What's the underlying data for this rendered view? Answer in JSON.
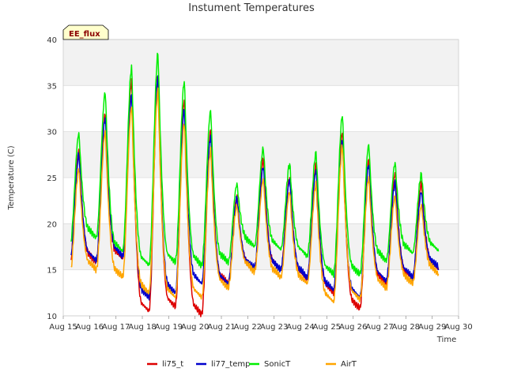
{
  "chart_data": {
    "type": "line",
    "title": "Instument Temperatures",
    "xlabel": "Time",
    "ylabel": "Temperature (C)",
    "ylim": [
      10,
      40
    ],
    "xlim": [
      0,
      15
    ],
    "y_ticks": [
      10,
      15,
      20,
      25,
      30,
      35,
      40
    ],
    "x_tick_labels": [
      "Aug 15",
      "Aug 16",
      "Aug 17",
      "Aug 18",
      "Aug 19",
      "Aug 20",
      "Aug 21",
      "Aug 22",
      "Aug 23",
      "Aug 24",
      "Aug 25",
      "Aug 26",
      "Aug 27",
      "Aug 28",
      "Aug 29",
      "Aug 30"
    ],
    "grid": true,
    "background_bands": true,
    "legend_position": "bottom",
    "annotation": "EE_flux",
    "series": [
      {
        "name": "li75_t",
        "color": "#dd0000",
        "daily": [
          [
            15.5,
            28.0
          ],
          [
            15.8,
            32.0
          ],
          [
            16.2,
            35.5
          ],
          [
            10.5,
            36.0
          ],
          [
            11.0,
            33.5
          ],
          [
            10.2,
            30.2
          ],
          [
            13.5,
            23.0
          ],
          [
            15.0,
            27.0
          ],
          [
            15.0,
            25.0
          ],
          [
            14.0,
            26.5
          ],
          [
            12.5,
            30.0
          ],
          [
            10.8,
            27.0
          ],
          [
            13.5,
            25.5
          ],
          [
            14.0,
            24.5
          ],
          [
            15.0,
            24.5
          ]
        ],
        "end": 15.0
      },
      {
        "name": "li77_temp",
        "color": "#0000cc",
        "daily": [
          [
            15.8,
            27.5
          ],
          [
            16.0,
            31.5
          ],
          [
            16.5,
            34.0
          ],
          [
            12.0,
            36.0
          ],
          [
            12.5,
            32.5
          ],
          [
            13.5,
            29.5
          ],
          [
            13.5,
            22.8
          ],
          [
            15.2,
            26.2
          ],
          [
            15.0,
            24.8
          ],
          [
            14.2,
            25.8
          ],
          [
            12.8,
            29.0
          ],
          [
            12.0,
            26.5
          ],
          [
            13.8,
            24.5
          ],
          [
            14.2,
            23.5
          ],
          [
            15.2,
            23.5
          ]
        ],
        "end": 15.2
      },
      {
        "name": "SonicT",
        "color": "#00ee00",
        "daily": [
          [
            17.5,
            29.8
          ],
          [
            18.5,
            34.3
          ],
          [
            17.0,
            37.0
          ],
          [
            15.5,
            38.5
          ],
          [
            15.8,
            35.5
          ],
          [
            15.5,
            32.3
          ],
          [
            15.8,
            24.3
          ],
          [
            17.5,
            28.2
          ],
          [
            17.2,
            26.5
          ],
          [
            16.5,
            27.7
          ],
          [
            14.5,
            31.8
          ],
          [
            14.5,
            28.6
          ],
          [
            16.0,
            26.6
          ],
          [
            16.8,
            25.4
          ],
          [
            17.0,
            25.4
          ]
        ],
        "end": 17.8
      },
      {
        "name": "AirT",
        "color": "#ffa500",
        "daily": [
          [
            14.5,
            26.0
          ],
          [
            15.0,
            30.0
          ],
          [
            14.2,
            32.8
          ],
          [
            12.5,
            34.5
          ],
          [
            12.0,
            31.0
          ],
          [
            12.0,
            28.0
          ],
          [
            13.0,
            22.0
          ],
          [
            14.8,
            24.8
          ],
          [
            14.2,
            23.5
          ],
          [
            13.5,
            24.3
          ],
          [
            11.5,
            28.5
          ],
          [
            11.8,
            25.0
          ],
          [
            13.0,
            23.0
          ],
          [
            13.5,
            22.0
          ],
          [
            14.5,
            22.2
          ]
        ],
        "end": 14.8
      }
    ]
  }
}
